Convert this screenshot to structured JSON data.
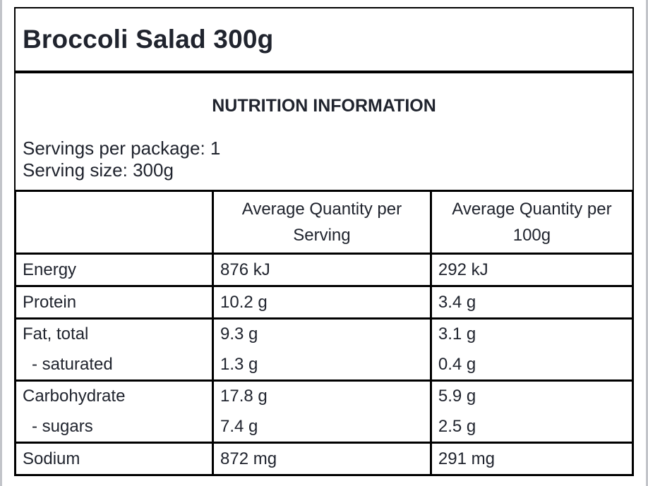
{
  "product": {
    "title": "Broccoli Salad 300g"
  },
  "info": {
    "heading": "NUTRITION INFORMATION",
    "servings_per_package": "Servings per package: 1",
    "serving_size": "Serving size: 300g"
  },
  "table": {
    "headers": {
      "nutrient": "",
      "per_serving": "Average Quantity per Serving",
      "per_100g": "Average Quantity per 100g"
    },
    "rows": [
      {
        "label": "Energy",
        "per_serving": "876 kJ",
        "per_100g": "292 kJ"
      },
      {
        "label": "Protein",
        "per_serving": "10.2 g",
        "per_100g": "3.4 g"
      },
      {
        "label": "Fat, total",
        "per_serving": "9.3 g",
        "per_100g": "3.1 g"
      },
      {
        "label": "- saturated",
        "per_serving": "1.3 g",
        "per_100g": "0.4 g"
      },
      {
        "label": "Carbohydrate",
        "per_serving": "17.8 g",
        "per_100g": "5.9 g"
      },
      {
        "label": "- sugars",
        "per_serving": "7.4 g",
        "per_100g": "2.5 g"
      },
      {
        "label": "Sodium",
        "per_serving": "872 mg",
        "per_100g": "291 mg"
      }
    ]
  },
  "colors": {
    "text": "#20242e",
    "table_border": "#000000",
    "page_edge": "#c2c4c9"
  }
}
